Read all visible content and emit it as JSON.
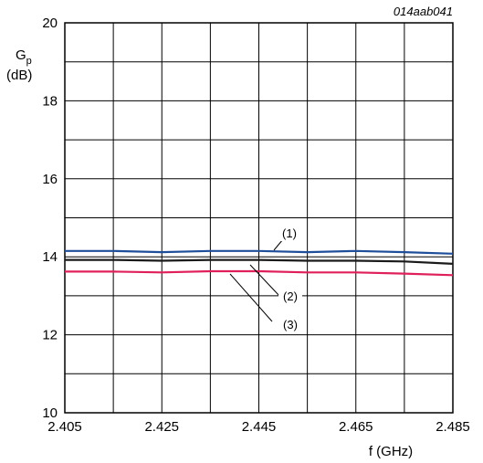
{
  "chart_data": {
    "type": "line",
    "figure_id": "014aab041",
    "ylabel_main": "G",
    "ylabel_sub": "p",
    "ylabel_unit": "(dB)",
    "xlabel": "f (GHz)",
    "xlim": [
      2.405,
      2.485
    ],
    "ylim": [
      10,
      20
    ],
    "x_ticks": [
      "2.405",
      "2.425",
      "2.445",
      "2.465",
      "2.485"
    ],
    "y_ticks": [
      "10",
      "12",
      "14",
      "16",
      "18",
      "20"
    ],
    "grid": true,
    "x": [
      2.405,
      2.415,
      2.425,
      2.435,
      2.445,
      2.455,
      2.465,
      2.475,
      2.485
    ],
    "series": [
      {
        "callout": "(1)",
        "color": "#1f4e9a",
        "values": [
          14.15,
          14.15,
          14.12,
          14.15,
          14.15,
          14.12,
          14.15,
          14.12,
          14.08
        ]
      },
      {
        "callout": "(2)",
        "color": "#1a1a1a",
        "values": [
          13.92,
          13.92,
          13.9,
          13.92,
          13.92,
          13.9,
          13.9,
          13.88,
          13.82
        ]
      },
      {
        "callout": "(3)",
        "color": "#e0205a",
        "values": [
          13.62,
          13.62,
          13.6,
          13.63,
          13.63,
          13.6,
          13.6,
          13.57,
          13.53
        ]
      }
    ]
  }
}
